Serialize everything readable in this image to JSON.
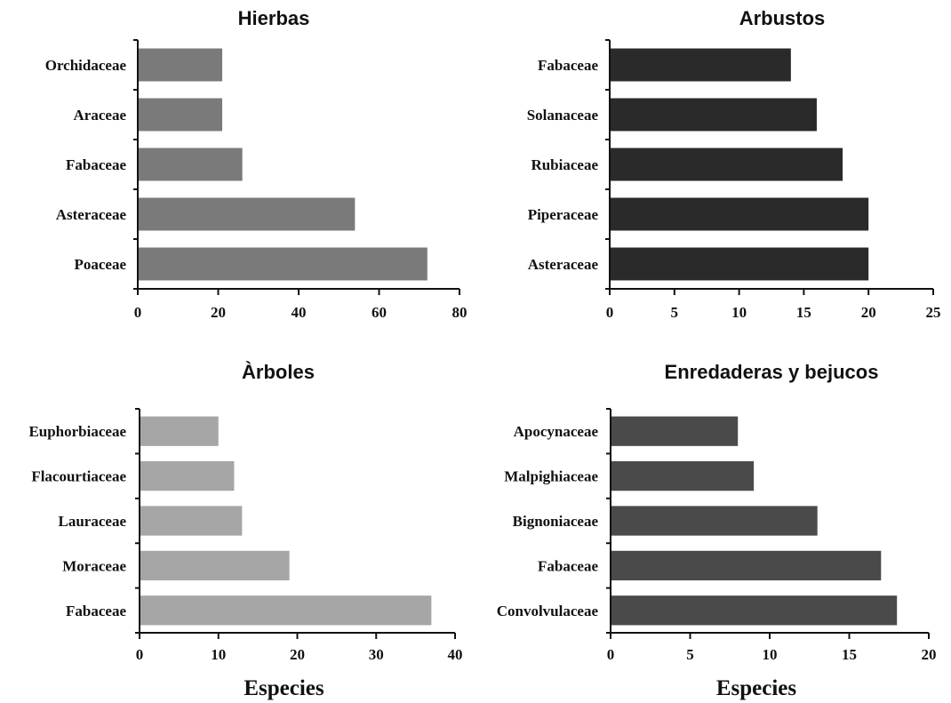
{
  "chart_data": [
    {
      "type": "bar",
      "orientation": "horizontal",
      "title": "Hierbas",
      "categories": [
        "Orchidaceae",
        "Araceae",
        "Fabaceae",
        "Asteraceae",
        "Poaceae"
      ],
      "values": [
        21,
        21,
        26,
        54,
        72
      ],
      "xlim": [
        0,
        80
      ],
      "xticks": [
        "0",
        "20",
        "40",
        "60",
        "80"
      ],
      "xlabel": "",
      "color": "#7a7a7a"
    },
    {
      "type": "bar",
      "orientation": "horizontal",
      "title": "Arbustos",
      "categories": [
        "Fabaceae",
        "Solanaceae",
        "Rubiaceae",
        "Piperaceae",
        "Asteraceae"
      ],
      "values": [
        14,
        16,
        18,
        20,
        20
      ],
      "xlim": [
        0,
        25
      ],
      "xticks": [
        "0",
        "5",
        "10",
        "15",
        "20",
        "25"
      ],
      "xlabel": "",
      "color": "#2a2a2a"
    },
    {
      "type": "bar",
      "orientation": "horizontal",
      "title": "Àrboles",
      "categories": [
        "Euphorbiaceae",
        "Flacourtiaceae",
        "Lauraceae",
        "Moraceae",
        "Fabaceae"
      ],
      "values": [
        10,
        12,
        13,
        19,
        37
      ],
      "xlim": [
        0,
        40
      ],
      "xticks": [
        "0",
        "10",
        "20",
        "30",
        "40"
      ],
      "xlabel": "Especies",
      "color": "#a6a6a6"
    },
    {
      "type": "bar",
      "orientation": "horizontal",
      "title": "Enredaderas y bejucos",
      "categories": [
        "Apocynaceae",
        "Malpighiaceae",
        "Bignoniaceae",
        "Fabaceae",
        "Convolvulaceae"
      ],
      "values": [
        8,
        9,
        13,
        17,
        18
      ],
      "xlim": [
        0,
        20
      ],
      "xticks": [
        "0",
        "5",
        "10",
        "15",
        "20"
      ],
      "xlabel": "Especies",
      "color": "#4a4a4a"
    }
  ]
}
